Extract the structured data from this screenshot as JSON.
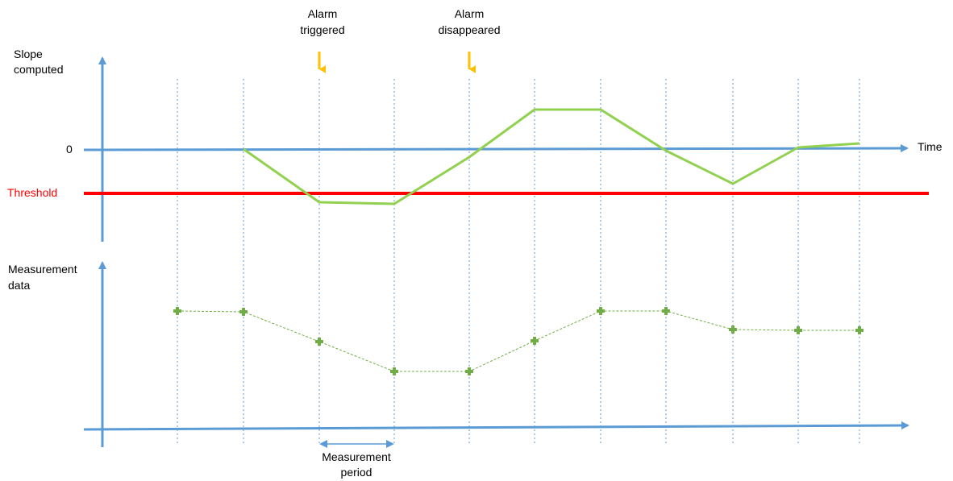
{
  "upper_chart": {
    "y_axis_label": [
      "Slope",
      "computed"
    ],
    "zero_label": "0",
    "x_axis_label": "Time",
    "threshold_label": "Threshold"
  },
  "lower_chart": {
    "y_axis_label": [
      "Measurement",
      "data"
    ]
  },
  "annotations": {
    "alarm_triggered": [
      "Alarm",
      "triggered"
    ],
    "alarm_disappeared": [
      "Alarm",
      "disappeared"
    ],
    "measurement_period": [
      "Measurement",
      "period"
    ]
  },
  "colors": {
    "axis": "#5b9bd5",
    "gridline": "#5b9bd5",
    "threshold": "#ff0000",
    "slope_line": "#92d050",
    "measurement_line": "#70ad47",
    "alarm_arrow": "#ffc000"
  }
}
